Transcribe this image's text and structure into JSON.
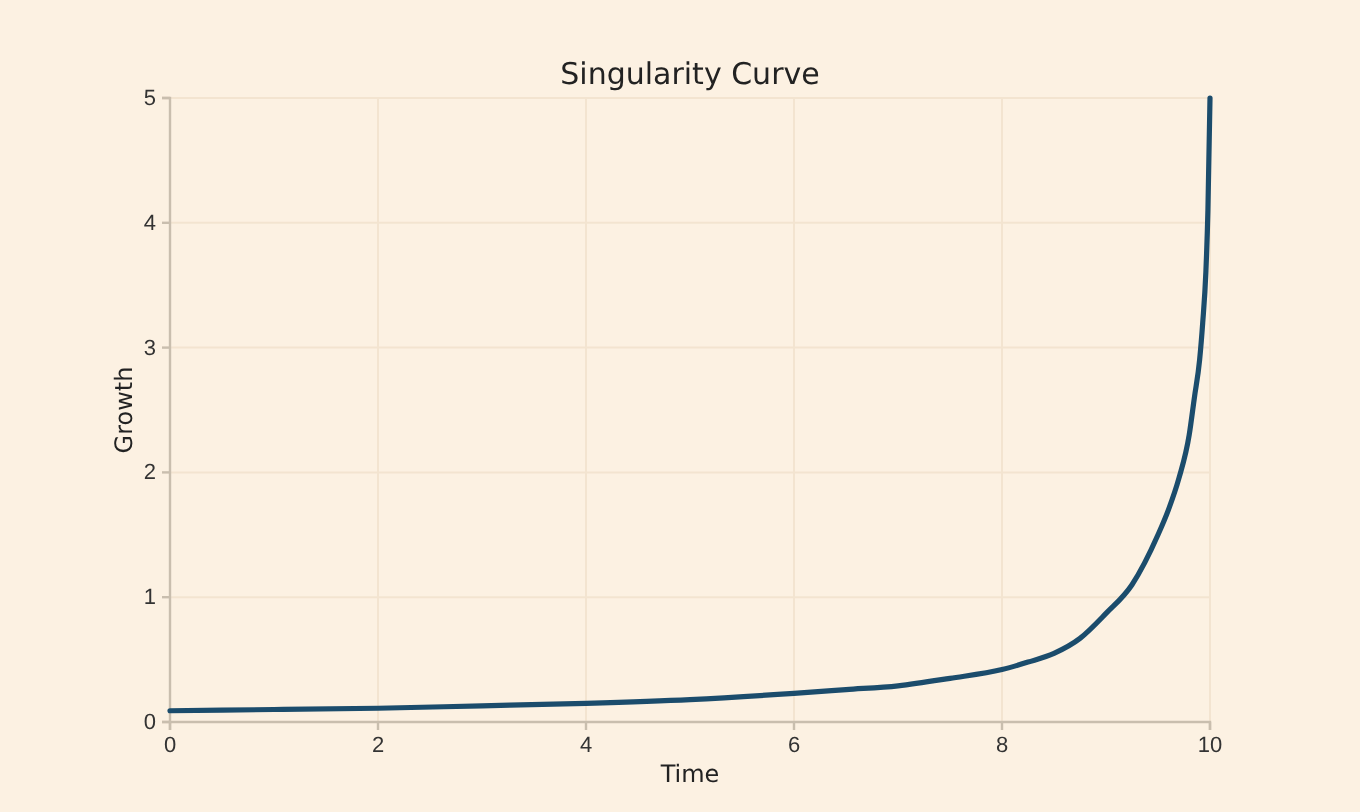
{
  "chart_data": {
    "type": "line",
    "title": "Singularity Curve",
    "xlabel": "Time",
    "ylabel": "Growth",
    "xlim": [
      0,
      10
    ],
    "ylim": [
      0,
      5
    ],
    "xticks": [
      0,
      2,
      4,
      6,
      8,
      10
    ],
    "yticks": [
      0,
      1,
      2,
      3,
      4,
      5
    ],
    "grid": true,
    "series": [
      {
        "color": "#1b4c6c",
        "x": [
          0,
          1,
          2,
          3,
          4,
          5,
          6,
          6.5,
          7,
          7.5,
          8,
          8.25,
          8.5,
          8.75,
          9,
          9.25,
          9.5,
          9.6,
          9.7,
          9.8,
          9.85,
          9.9,
          9.93,
          9.96,
          9.98,
          10
        ],
        "values": [
          0.09,
          0.1,
          0.11,
          0.13,
          0.15,
          0.18,
          0.23,
          0.26,
          0.29,
          0.35,
          0.42,
          0.48,
          0.55,
          0.67,
          0.87,
          1.1,
          1.5,
          1.7,
          1.95,
          2.3,
          2.6,
          2.9,
          3.2,
          3.6,
          4.1,
          5
        ]
      }
    ]
  }
}
